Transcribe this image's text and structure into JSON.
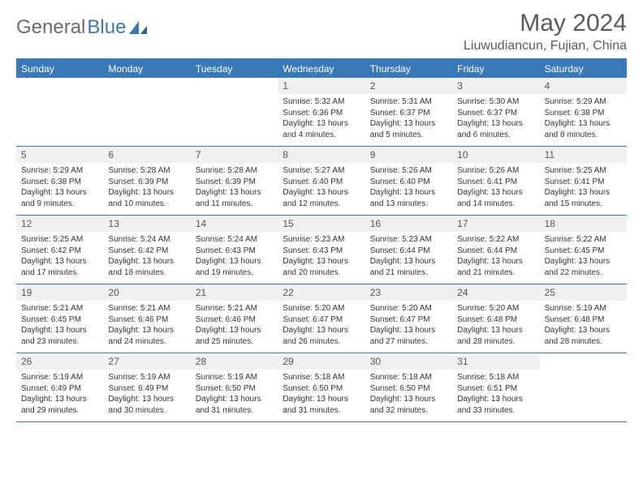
{
  "logo": {
    "text_gray": "General",
    "text_blue": "Blue"
  },
  "title": "May 2024",
  "location": "Liuwudiancun, Fujian, China",
  "colors": {
    "brand_blue": "#3a79b7",
    "header_gray": "#6a6a6a",
    "daynum_bg": "#eef0f2",
    "text": "#333333"
  },
  "weekdays": [
    "Sunday",
    "Monday",
    "Tuesday",
    "Wednesday",
    "Thursday",
    "Friday",
    "Saturday"
  ],
  "weeks": [
    [
      {
        "n": "",
        "sr": "",
        "ss": "",
        "dl": ""
      },
      {
        "n": "",
        "sr": "",
        "ss": "",
        "dl": ""
      },
      {
        "n": "",
        "sr": "",
        "ss": "",
        "dl": ""
      },
      {
        "n": "1",
        "sr": "Sunrise: 5:32 AM",
        "ss": "Sunset: 6:36 PM",
        "dl": "Daylight: 13 hours and 4 minutes."
      },
      {
        "n": "2",
        "sr": "Sunrise: 5:31 AM",
        "ss": "Sunset: 6:37 PM",
        "dl": "Daylight: 13 hours and 5 minutes."
      },
      {
        "n": "3",
        "sr": "Sunrise: 5:30 AM",
        "ss": "Sunset: 6:37 PM",
        "dl": "Daylight: 13 hours and 6 minutes."
      },
      {
        "n": "4",
        "sr": "Sunrise: 5:29 AM",
        "ss": "Sunset: 6:38 PM",
        "dl": "Daylight: 13 hours and 8 minutes."
      }
    ],
    [
      {
        "n": "5",
        "sr": "Sunrise: 5:29 AM",
        "ss": "Sunset: 6:38 PM",
        "dl": "Daylight: 13 hours and 9 minutes."
      },
      {
        "n": "6",
        "sr": "Sunrise: 5:28 AM",
        "ss": "Sunset: 6:39 PM",
        "dl": "Daylight: 13 hours and 10 minutes."
      },
      {
        "n": "7",
        "sr": "Sunrise: 5:28 AM",
        "ss": "Sunset: 6:39 PM",
        "dl": "Daylight: 13 hours and 11 minutes."
      },
      {
        "n": "8",
        "sr": "Sunrise: 5:27 AM",
        "ss": "Sunset: 6:40 PM",
        "dl": "Daylight: 13 hours and 12 minutes."
      },
      {
        "n": "9",
        "sr": "Sunrise: 5:26 AM",
        "ss": "Sunset: 6:40 PM",
        "dl": "Daylight: 13 hours and 13 minutes."
      },
      {
        "n": "10",
        "sr": "Sunrise: 5:26 AM",
        "ss": "Sunset: 6:41 PM",
        "dl": "Daylight: 13 hours and 14 minutes."
      },
      {
        "n": "11",
        "sr": "Sunrise: 5:25 AM",
        "ss": "Sunset: 6:41 PM",
        "dl": "Daylight: 13 hours and 15 minutes."
      }
    ],
    [
      {
        "n": "12",
        "sr": "Sunrise: 5:25 AM",
        "ss": "Sunset: 6:42 PM",
        "dl": "Daylight: 13 hours and 17 minutes."
      },
      {
        "n": "13",
        "sr": "Sunrise: 5:24 AM",
        "ss": "Sunset: 6:42 PM",
        "dl": "Daylight: 13 hours and 18 minutes."
      },
      {
        "n": "14",
        "sr": "Sunrise: 5:24 AM",
        "ss": "Sunset: 6:43 PM",
        "dl": "Daylight: 13 hours and 19 minutes."
      },
      {
        "n": "15",
        "sr": "Sunrise: 5:23 AM",
        "ss": "Sunset: 6:43 PM",
        "dl": "Daylight: 13 hours and 20 minutes."
      },
      {
        "n": "16",
        "sr": "Sunrise: 5:23 AM",
        "ss": "Sunset: 6:44 PM",
        "dl": "Daylight: 13 hours and 21 minutes."
      },
      {
        "n": "17",
        "sr": "Sunrise: 5:22 AM",
        "ss": "Sunset: 6:44 PM",
        "dl": "Daylight: 13 hours and 21 minutes."
      },
      {
        "n": "18",
        "sr": "Sunrise: 5:22 AM",
        "ss": "Sunset: 6:45 PM",
        "dl": "Daylight: 13 hours and 22 minutes."
      }
    ],
    [
      {
        "n": "19",
        "sr": "Sunrise: 5:21 AM",
        "ss": "Sunset: 6:45 PM",
        "dl": "Daylight: 13 hours and 23 minutes."
      },
      {
        "n": "20",
        "sr": "Sunrise: 5:21 AM",
        "ss": "Sunset: 6:46 PM",
        "dl": "Daylight: 13 hours and 24 minutes."
      },
      {
        "n": "21",
        "sr": "Sunrise: 5:21 AM",
        "ss": "Sunset: 6:46 PM",
        "dl": "Daylight: 13 hours and 25 minutes."
      },
      {
        "n": "22",
        "sr": "Sunrise: 5:20 AM",
        "ss": "Sunset: 6:47 PM",
        "dl": "Daylight: 13 hours and 26 minutes."
      },
      {
        "n": "23",
        "sr": "Sunrise: 5:20 AM",
        "ss": "Sunset: 6:47 PM",
        "dl": "Daylight: 13 hours and 27 minutes."
      },
      {
        "n": "24",
        "sr": "Sunrise: 5:20 AM",
        "ss": "Sunset: 6:48 PM",
        "dl": "Daylight: 13 hours and 28 minutes."
      },
      {
        "n": "25",
        "sr": "Sunrise: 5:19 AM",
        "ss": "Sunset: 6:48 PM",
        "dl": "Daylight: 13 hours and 28 minutes."
      }
    ],
    [
      {
        "n": "26",
        "sr": "Sunrise: 5:19 AM",
        "ss": "Sunset: 6:49 PM",
        "dl": "Daylight: 13 hours and 29 minutes."
      },
      {
        "n": "27",
        "sr": "Sunrise: 5:19 AM",
        "ss": "Sunset: 6:49 PM",
        "dl": "Daylight: 13 hours and 30 minutes."
      },
      {
        "n": "28",
        "sr": "Sunrise: 5:19 AM",
        "ss": "Sunset: 6:50 PM",
        "dl": "Daylight: 13 hours and 31 minutes."
      },
      {
        "n": "29",
        "sr": "Sunrise: 5:18 AM",
        "ss": "Sunset: 6:50 PM",
        "dl": "Daylight: 13 hours and 31 minutes."
      },
      {
        "n": "30",
        "sr": "Sunrise: 5:18 AM",
        "ss": "Sunset: 6:50 PM",
        "dl": "Daylight: 13 hours and 32 minutes."
      },
      {
        "n": "31",
        "sr": "Sunrise: 5:18 AM",
        "ss": "Sunset: 6:51 PM",
        "dl": "Daylight: 13 hours and 33 minutes."
      },
      {
        "n": "",
        "sr": "",
        "ss": "",
        "dl": ""
      }
    ]
  ]
}
